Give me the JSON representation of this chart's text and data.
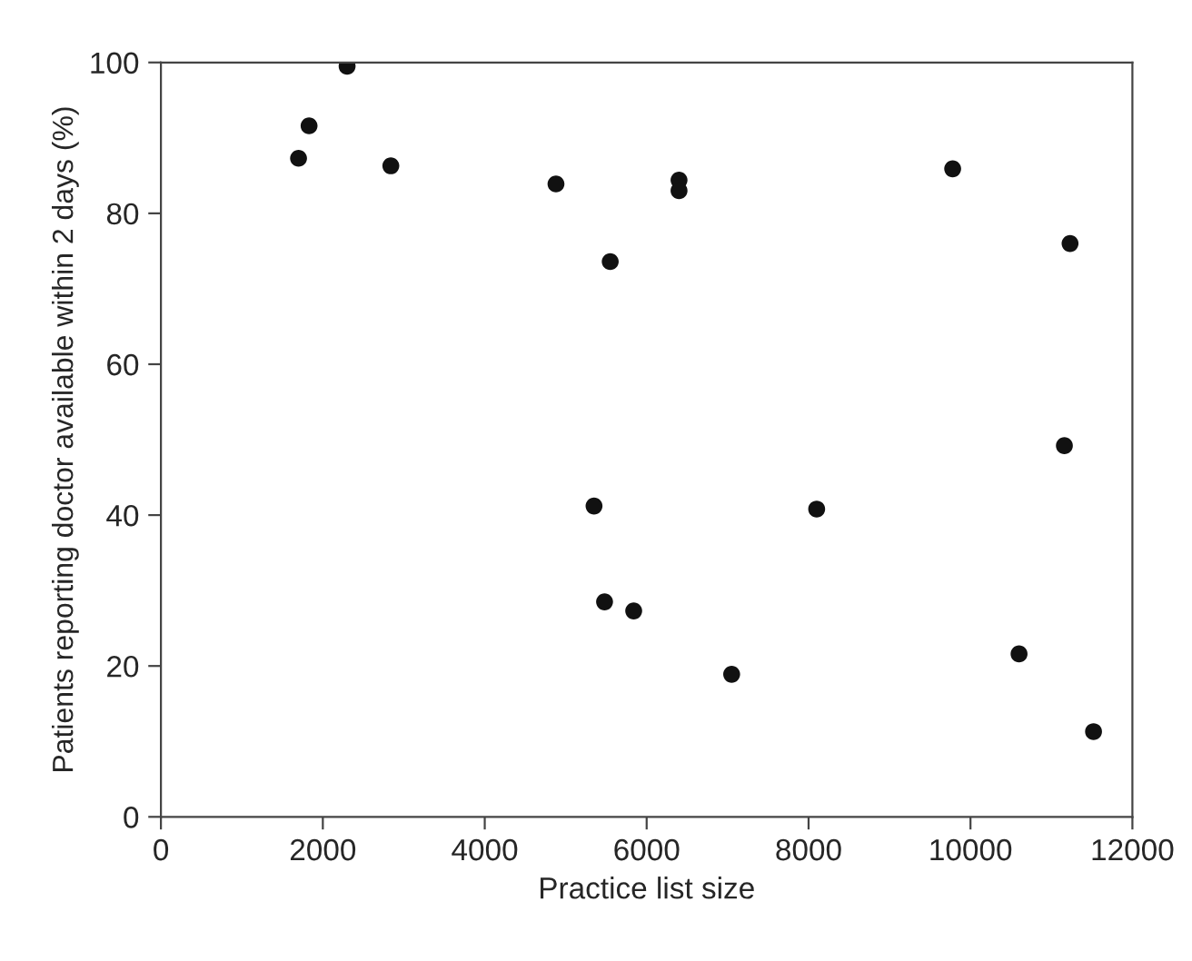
{
  "chart_data": {
    "type": "scatter",
    "xlabel": "Practice list size",
    "ylabel": "Patients reporting doctor available within 2 days (%)",
    "x": [
      1700,
      1830,
      2300,
      2840,
      4880,
      5550,
      6400,
      6400,
      9780,
      11230,
      11160,
      5350,
      5480,
      5840,
      7050,
      8100,
      10600,
      11520
    ],
    "values": [
      87.3,
      91.6,
      99.5,
      86.3,
      83.9,
      73.6,
      84.4,
      83.0,
      85.9,
      76,
      49.2,
      41.2,
      28.5,
      27.3,
      18.9,
      40.8,
      21.6,
      11.3
    ],
    "color": "#111111",
    "marker": "circle",
    "xlim": [
      0,
      12000
    ],
    "ylim": [
      0,
      100
    ],
    "xticks": [
      0,
      2000,
      4000,
      6000,
      8000,
      10000,
      12000
    ],
    "yticks": [
      0,
      20,
      40,
      60,
      80,
      100
    ]
  }
}
